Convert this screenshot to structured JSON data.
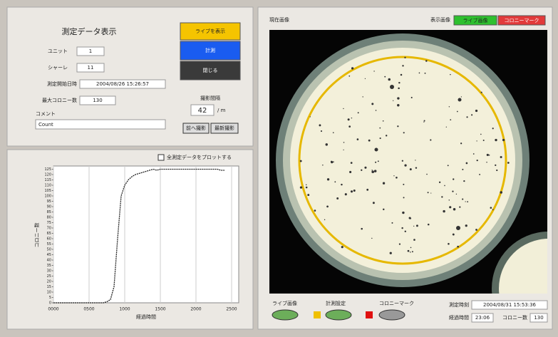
{
  "left_panel": {
    "title": "測定データ表示",
    "unit_label": "ユニット",
    "unit": "1",
    "dish_label": "シャーレ",
    "dish": "11",
    "start_label": "測定開始日時",
    "start": "2004/08/26 15:26:57",
    "max_label": "最大コロニー数",
    "max": "130",
    "comment_label": "コメント",
    "comment": "Count",
    "buttons": [
      "ライブを表示",
      "計測",
      "閉じる"
    ],
    "interval_label": "撮影間隔",
    "interval": "42",
    "interval_unit": "/ m",
    "nav_buttons": [
      "前へ撮影",
      "最新撮影"
    ],
    "plot_all": "全測定データをプロットする"
  },
  "chart_data": {
    "type": "line",
    "xlabel": "経過時間",
    "ylabel": "コロニー数",
    "color": "#222222",
    "grid": "x",
    "x": [
      0,
      100,
      200,
      300,
      400,
      500,
      600,
      700,
      750,
      800,
      850,
      900,
      950,
      1000,
      1050,
      1100,
      1150,
      1200,
      1250,
      1300,
      1350,
      1400,
      1450,
      1500,
      1600,
      1700,
      1800,
      1900,
      2000,
      2100,
      2200,
      2300,
      2350,
      2400
    ],
    "values": [
      0,
      0,
      0,
      0,
      0,
      0,
      0,
      0,
      1,
      3,
      15,
      60,
      100,
      110,
      115,
      118,
      120,
      121,
      122,
      123,
      124,
      125,
      124,
      125,
      125,
      125,
      125,
      125,
      125,
      125,
      125,
      125,
      124,
      124
    ],
    "xlim": [
      0,
      2600
    ],
    "xticks": [
      {
        "value": 0,
        "label": "0000"
      },
      {
        "value": 500,
        "label": "0500"
      },
      {
        "value": 1000,
        "label": "1000"
      },
      {
        "value": 1500,
        "label": "1500"
      },
      {
        "value": 2000,
        "label": "2000"
      },
      {
        "value": 2500,
        "label": "2500"
      }
    ],
    "ylim": [
      0,
      128
    ],
    "yticks": [
      0,
      5,
      10,
      15,
      20,
      25,
      30,
      35,
      40,
      45,
      50,
      55,
      60,
      65,
      70,
      75,
      80,
      85,
      90,
      95,
      100,
      105,
      110,
      115,
      120,
      125
    ]
  },
  "right_panel": {
    "title": "現在画像",
    "display_label": "表示画像",
    "display_buttons": [
      "ライブ画像",
      "コロニーマーク"
    ],
    "bottom_labels": [
      "ライブ画像",
      "計測設定",
      "コロニーマーク"
    ],
    "time_label": "測定時刻",
    "time": "2004/08/31 15:53:36",
    "elapsed_label": "経過時間",
    "elapsed": "23:06",
    "count_label": "コロニー数",
    "count": "130"
  }
}
